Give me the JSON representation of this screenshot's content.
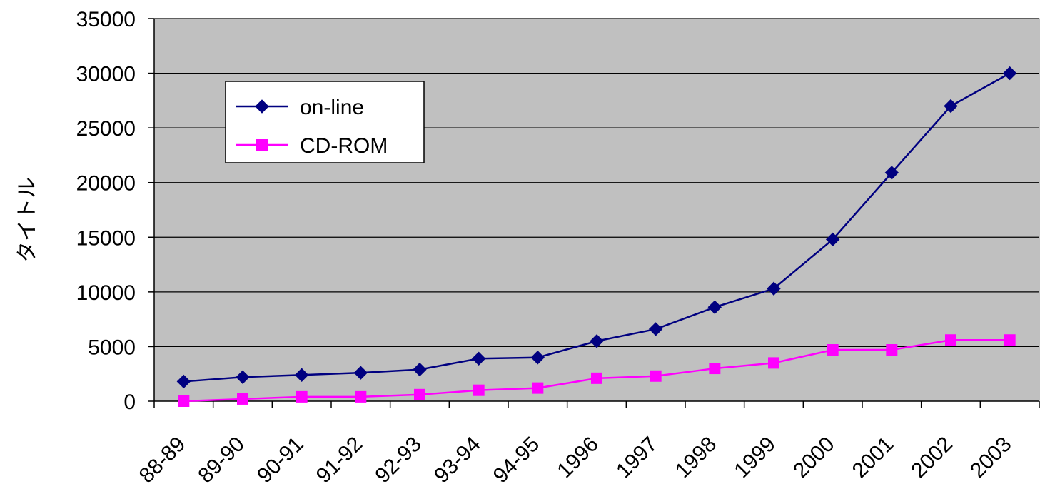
{
  "chart_data": {
    "type": "line",
    "categories": [
      "88-89",
      "89-90",
      "90-91",
      "91-92",
      "92-93",
      "93-94",
      "94-95",
      "1996",
      "1997",
      "1998",
      "1999",
      "2000",
      "2001",
      "2002",
      "2003"
    ],
    "series": [
      {
        "name": "on-line",
        "color": "#000080",
        "marker": "diamond",
        "values": [
          1800,
          2200,
          2400,
          2600,
          2900,
          3900,
          4000,
          5500,
          6600,
          8600,
          10300,
          14800,
          20900,
          27000,
          30000
        ]
      },
      {
        "name": "CD-ROM",
        "color": "#ff00ff",
        "marker": "square",
        "values": [
          0,
          200,
          400,
          400,
          600,
          1000,
          1200,
          2100,
          2300,
          3000,
          3500,
          4700,
          4700,
          5600,
          5600
        ]
      }
    ],
    "ylabel": "タイトル",
    "xlabel": "",
    "ylim": [
      0,
      35000
    ],
    "yticks": [
      0,
      5000,
      10000,
      15000,
      20000,
      25000,
      30000,
      35000
    ],
    "grid": true,
    "legend": "top-left",
    "plot_background": "#c0c0c0"
  }
}
